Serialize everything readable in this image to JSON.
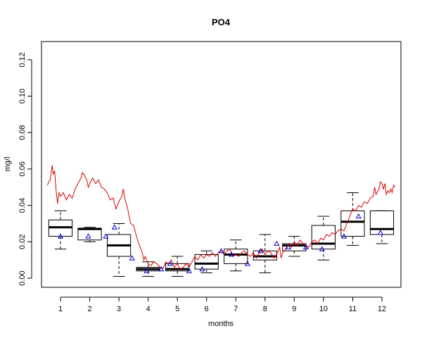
{
  "chart_data": {
    "type": "box",
    "title": "PO4",
    "xlabel": "months",
    "ylabel": "mg/l",
    "xlim": [
      0.35,
      12.65
    ],
    "ylim": [
      -0.005,
      0.13
    ],
    "x_ticks": [
      1,
      2,
      3,
      4,
      5,
      6,
      7,
      8,
      9,
      10,
      11,
      12
    ],
    "x_tick_labels": [
      "1",
      "2",
      "3",
      "4",
      "5",
      "6",
      "7",
      "8",
      "9",
      "10",
      "11",
      "12"
    ],
    "y_ticks": [
      0,
      0.02,
      0.04,
      0.06,
      0.08,
      0.1,
      0.12
    ],
    "y_tick_labels": [
      "0.00",
      "0.02",
      "0.04",
      "0.06",
      "0.08",
      "0.10",
      "0.12"
    ],
    "grid": false,
    "legend": "none",
    "boxes": [
      {
        "month": "1",
        "min": 0.016,
        "q1": 0.023,
        "median": 0.028,
        "q3": 0.032,
        "max": 0.037
      },
      {
        "month": "2",
        "min": 0.02,
        "q1": 0.021,
        "median": 0.027,
        "q3": 0.0275,
        "max": 0.028
      },
      {
        "month": "3",
        "min": 0.001,
        "q1": 0.012,
        "median": 0.018,
        "q3": 0.024,
        "max": 0.03
      },
      {
        "month": "4",
        "min": 0.001,
        "q1": 0.004,
        "median": 0.005,
        "q3": 0.006,
        "max": 0.009
      },
      {
        "month": "5",
        "min": 0.001,
        "q1": 0.004,
        "median": 0.005,
        "q3": 0.008,
        "max": 0.012
      },
      {
        "month": "6",
        "min": 0.003,
        "q1": 0.005,
        "median": 0.008,
        "q3": 0.013,
        "max": 0.015
      },
      {
        "month": "7",
        "min": 0.004,
        "q1": 0.008,
        "median": 0.013,
        "q3": 0.016,
        "max": 0.021
      },
      {
        "month": "8",
        "min": 0.003,
        "q1": 0.01,
        "median": 0.012,
        "q3": 0.015,
        "max": 0.024
      },
      {
        "month": "9",
        "min": 0.012,
        "q1": 0.015,
        "median": 0.018,
        "q3": 0.019,
        "max": 0.023
      },
      {
        "month": "10",
        "min": 0.01,
        "q1": 0.016,
        "median": 0.019,
        "q3": 0.029,
        "max": 0.034
      },
      {
        "month": "11",
        "min": 0.018,
        "q1": 0.023,
        "median": 0.031,
        "q3": 0.037,
        "max": 0.047
      },
      {
        "month": "12",
        "min": 0.019,
        "q1": 0.024,
        "median": 0.027,
        "q3": 0.037,
        "max": 0.037
      }
    ],
    "means": {
      "marker": "triangle",
      "points": [
        {
          "x": 1.0,
          "y": 0.023
        },
        {
          "x": 1.95,
          "y": 0.023
        },
        {
          "x": 2.55,
          "y": 0.023
        },
        {
          "x": 2.85,
          "y": 0.028
        },
        {
          "x": 3.45,
          "y": 0.011
        },
        {
          "x": 3.95,
          "y": 0.004
        },
        {
          "x": 4.45,
          "y": 0.005
        },
        {
          "x": 4.75,
          "y": 0.008
        },
        {
          "x": 5.4,
          "y": 0.004
        },
        {
          "x": 5.85,
          "y": 0.005
        },
        {
          "x": 6.5,
          "y": 0.015
        },
        {
          "x": 6.85,
          "y": 0.013
        },
        {
          "x": 7.4,
          "y": 0.008
        },
        {
          "x": 7.85,
          "y": 0.015
        },
        {
          "x": 8.4,
          "y": 0.019
        },
        {
          "x": 8.8,
          "y": 0.017
        },
        {
          "x": 9.4,
          "y": 0.017
        },
        {
          "x": 9.95,
          "y": 0.016
        },
        {
          "x": 10.7,
          "y": 0.023
        },
        {
          "x": 11.2,
          "y": 0.034
        },
        {
          "x": 11.95,
          "y": 0.025
        }
      ]
    },
    "line": {
      "color": "#dd0000",
      "points": [
        {
          "x": 0.55,
          "y": 0.051
        },
        {
          "x": 0.6,
          "y": 0.053
        },
        {
          "x": 0.65,
          "y": 0.054
        },
        {
          "x": 0.68,
          "y": 0.058
        },
        {
          "x": 0.72,
          "y": 0.062
        },
        {
          "x": 0.75,
          "y": 0.057
        },
        {
          "x": 0.8,
          "y": 0.059
        },
        {
          "x": 0.85,
          "y": 0.048
        },
        {
          "x": 0.9,
          "y": 0.041
        },
        {
          "x": 0.95,
          "y": 0.047
        },
        {
          "x": 1.0,
          "y": 0.045
        },
        {
          "x": 1.1,
          "y": 0.047
        },
        {
          "x": 1.2,
          "y": 0.043
        },
        {
          "x": 1.3,
          "y": 0.046
        },
        {
          "x": 1.4,
          "y": 0.044
        },
        {
          "x": 1.5,
          "y": 0.049
        },
        {
          "x": 1.6,
          "y": 0.052
        },
        {
          "x": 1.7,
          "y": 0.055
        },
        {
          "x": 1.75,
          "y": 0.058
        },
        {
          "x": 1.8,
          "y": 0.057
        },
        {
          "x": 1.9,
          "y": 0.054
        },
        {
          "x": 1.95,
          "y": 0.05
        },
        {
          "x": 2.0,
          "y": 0.052
        },
        {
          "x": 2.1,
          "y": 0.055
        },
        {
          "x": 2.2,
          "y": 0.052
        },
        {
          "x": 2.3,
          "y": 0.054
        },
        {
          "x": 2.4,
          "y": 0.05
        },
        {
          "x": 2.5,
          "y": 0.049
        },
        {
          "x": 2.6,
          "y": 0.047
        },
        {
          "x": 2.7,
          "y": 0.043
        },
        {
          "x": 2.8,
          "y": 0.044
        },
        {
          "x": 2.9,
          "y": 0.038
        },
        {
          "x": 3.0,
          "y": 0.042
        },
        {
          "x": 3.1,
          "y": 0.045
        },
        {
          "x": 3.15,
          "y": 0.049
        },
        {
          "x": 3.2,
          "y": 0.044
        },
        {
          "x": 3.3,
          "y": 0.038
        },
        {
          "x": 3.4,
          "y": 0.03
        },
        {
          "x": 3.5,
          "y": 0.029
        },
        {
          "x": 3.6,
          "y": 0.023
        },
        {
          "x": 3.7,
          "y": 0.018
        },
        {
          "x": 3.8,
          "y": 0.014
        },
        {
          "x": 3.85,
          "y": 0.01
        },
        {
          "x": 3.9,
          "y": 0.012
        },
        {
          "x": 4.0,
          "y": 0.008
        },
        {
          "x": 4.1,
          "y": 0.007
        },
        {
          "x": 4.2,
          "y": 0.009
        },
        {
          "x": 4.3,
          "y": 0.008
        },
        {
          "x": 4.4,
          "y": 0.006
        },
        {
          "x": 4.5,
          "y": 0.005
        },
        {
          "x": 4.6,
          "y": 0.009
        },
        {
          "x": 4.7,
          "y": 0.008
        },
        {
          "x": 4.8,
          "y": 0.01
        },
        {
          "x": 4.9,
          "y": 0.006
        },
        {
          "x": 5.0,
          "y": 0.008
        },
        {
          "x": 5.1,
          "y": 0.005
        },
        {
          "x": 5.2,
          "y": 0.006
        },
        {
          "x": 5.3,
          "y": 0.008
        },
        {
          "x": 5.4,
          "y": 0.006
        },
        {
          "x": 5.5,
          "y": 0.009
        },
        {
          "x": 5.6,
          "y": 0.012
        },
        {
          "x": 5.7,
          "y": 0.01
        },
        {
          "x": 5.8,
          "y": 0.013
        },
        {
          "x": 5.9,
          "y": 0.011
        },
        {
          "x": 6.0,
          "y": 0.013
        },
        {
          "x": 6.1,
          "y": 0.012
        },
        {
          "x": 6.2,
          "y": 0.014
        },
        {
          "x": 6.3,
          "y": 0.012
        },
        {
          "x": 6.4,
          "y": 0.014
        },
        {
          "x": 6.5,
          "y": 0.015
        },
        {
          "x": 6.6,
          "y": 0.013
        },
        {
          "x": 6.7,
          "y": 0.015
        },
        {
          "x": 6.8,
          "y": 0.016
        },
        {
          "x": 6.9,
          "y": 0.012
        },
        {
          "x": 7.0,
          "y": 0.013
        },
        {
          "x": 7.1,
          "y": 0.012
        },
        {
          "x": 7.2,
          "y": 0.014
        },
        {
          "x": 7.3,
          "y": 0.015
        },
        {
          "x": 7.4,
          "y": 0.013
        },
        {
          "x": 7.5,
          "y": 0.012
        },
        {
          "x": 7.6,
          "y": 0.014
        },
        {
          "x": 7.7,
          "y": 0.011
        },
        {
          "x": 7.8,
          "y": 0.014
        },
        {
          "x": 7.9,
          "y": 0.016
        },
        {
          "x": 8.0,
          "y": 0.013
        },
        {
          "x": 8.1,
          "y": 0.015
        },
        {
          "x": 8.2,
          "y": 0.014
        },
        {
          "x": 8.3,
          "y": 0.011
        },
        {
          "x": 8.4,
          "y": 0.013
        },
        {
          "x": 8.5,
          "y": 0.017
        },
        {
          "x": 8.55,
          "y": 0.011
        },
        {
          "x": 8.6,
          "y": 0.014
        },
        {
          "x": 8.7,
          "y": 0.016
        },
        {
          "x": 8.8,
          "y": 0.019
        },
        {
          "x": 8.9,
          "y": 0.017
        },
        {
          "x": 9.0,
          "y": 0.02
        },
        {
          "x": 9.1,
          "y": 0.018
        },
        {
          "x": 9.2,
          "y": 0.021
        },
        {
          "x": 9.3,
          "y": 0.019
        },
        {
          "x": 9.4,
          "y": 0.018
        },
        {
          "x": 9.5,
          "y": 0.017
        },
        {
          "x": 9.6,
          "y": 0.02
        },
        {
          "x": 9.7,
          "y": 0.021
        },
        {
          "x": 9.8,
          "y": 0.019
        },
        {
          "x": 9.9,
          "y": 0.022
        },
        {
          "x": 10.0,
          "y": 0.021
        },
        {
          "x": 10.1,
          "y": 0.024
        },
        {
          "x": 10.2,
          "y": 0.023
        },
        {
          "x": 10.3,
          "y": 0.025
        },
        {
          "x": 10.4,
          "y": 0.024
        },
        {
          "x": 10.5,
          "y": 0.026
        },
        {
          "x": 10.6,
          "y": 0.027
        },
        {
          "x": 10.7,
          "y": 0.026
        },
        {
          "x": 10.8,
          "y": 0.03
        },
        {
          "x": 10.9,
          "y": 0.034
        },
        {
          "x": 11.0,
          "y": 0.038
        },
        {
          "x": 11.1,
          "y": 0.037
        },
        {
          "x": 11.2,
          "y": 0.04
        },
        {
          "x": 11.3,
          "y": 0.039
        },
        {
          "x": 11.4,
          "y": 0.042
        },
        {
          "x": 11.5,
          "y": 0.041
        },
        {
          "x": 11.6,
          "y": 0.044
        },
        {
          "x": 11.7,
          "y": 0.045
        },
        {
          "x": 11.75,
          "y": 0.05
        },
        {
          "x": 11.8,
          "y": 0.046
        },
        {
          "x": 11.9,
          "y": 0.049
        },
        {
          "x": 11.95,
          "y": 0.053
        },
        {
          "x": 12.0,
          "y": 0.052
        },
        {
          "x": 12.05,
          "y": 0.049
        },
        {
          "x": 12.1,
          "y": 0.052
        },
        {
          "x": 12.15,
          "y": 0.046
        },
        {
          "x": 12.2,
          "y": 0.048
        },
        {
          "x": 12.25,
          "y": 0.047
        },
        {
          "x": 12.3,
          "y": 0.049
        },
        {
          "x": 12.35,
          "y": 0.047
        },
        {
          "x": 12.4,
          "y": 0.051
        },
        {
          "x": 12.45,
          "y": 0.05
        }
      ]
    },
    "colors": {
      "box": "#000000",
      "median": "#000000",
      "mean_marker": "#0000cc",
      "line": "#dd0000"
    }
  }
}
